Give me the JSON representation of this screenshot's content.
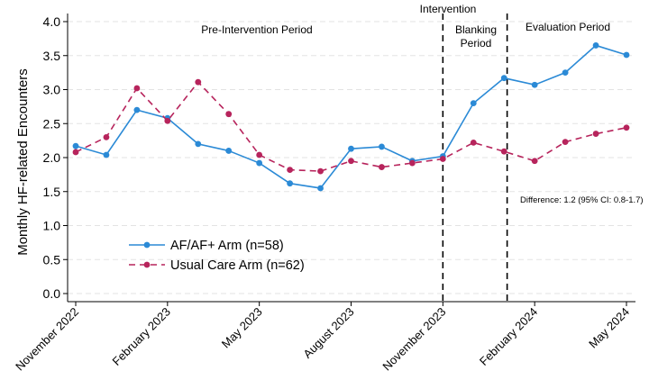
{
  "chart_data": {
    "type": "line",
    "ylabel": "Monthly HF-related Encounters",
    "xlabel": "",
    "ylim": [
      0,
      4
    ],
    "yticks": [
      "0.0",
      "0.5",
      "1.0",
      "1.5",
      "2.0",
      "2.5",
      "3.0",
      "3.5",
      "4.0"
    ],
    "ytick_values": [
      0,
      0.5,
      1.0,
      1.5,
      2.0,
      2.5,
      3.0,
      3.5,
      4.0
    ],
    "x_months": [
      "2022-11",
      "2022-12",
      "2023-01",
      "2023-02",
      "2023-03",
      "2023-04",
      "2023-05",
      "2023-06",
      "2023-07",
      "2023-08",
      "2023-09",
      "2023-10",
      "2023-11",
      "2023-12",
      "2024-01",
      "2024-02",
      "2024-03",
      "2024-04",
      "2024-05"
    ],
    "xticks": [
      {
        "index": 0,
        "label": "November 2022"
      },
      {
        "index": 3,
        "label": "February 2023"
      },
      {
        "index": 6,
        "label": "May 2023"
      },
      {
        "index": 9,
        "label": "August 2023"
      },
      {
        "index": 12,
        "label": "November 2023"
      },
      {
        "index": 15,
        "label": "February 2024"
      },
      {
        "index": 18,
        "label": "May 2024"
      }
    ],
    "series": [
      {
        "name": "AF/AF+ Arm (n=58)",
        "color": "#2b8ad6",
        "dash": "solid",
        "values": [
          2.17,
          2.04,
          2.7,
          2.58,
          2.2,
          2.1,
          1.92,
          1.62,
          1.55,
          2.13,
          2.16,
          1.95,
          2.02,
          2.8,
          3.17,
          3.07,
          3.25,
          3.65,
          3.51
        ]
      },
      {
        "name": "Usual Care Arm (n=62)",
        "color": "#b7245c",
        "dash": "dashed",
        "values": [
          2.08,
          2.3,
          3.02,
          2.54,
          3.11,
          2.64,
          2.04,
          1.82,
          1.8,
          1.95,
          1.86,
          1.92,
          1.98,
          2.22,
          2.09,
          1.95,
          2.23,
          2.35,
          2.44
        ]
      }
    ],
    "vlines": [
      {
        "at": 12,
        "label": "Intervention"
      },
      {
        "at": 14.1,
        "label": ""
      }
    ],
    "periods": [
      {
        "label": "Pre-Intervention Period",
        "lines": [
          "Pre-Intervention Period"
        ]
      },
      {
        "label": "Blanking Period",
        "lines": [
          "Blanking",
          "Period"
        ]
      },
      {
        "label": "Evaluation Period",
        "lines": [
          "Evaluation Period"
        ]
      }
    ],
    "annotation": "Difference: 1.2 (95% CI: 0.8-1.7)",
    "legend_position": "lower-left",
    "grid": "horizontal-dashed"
  }
}
